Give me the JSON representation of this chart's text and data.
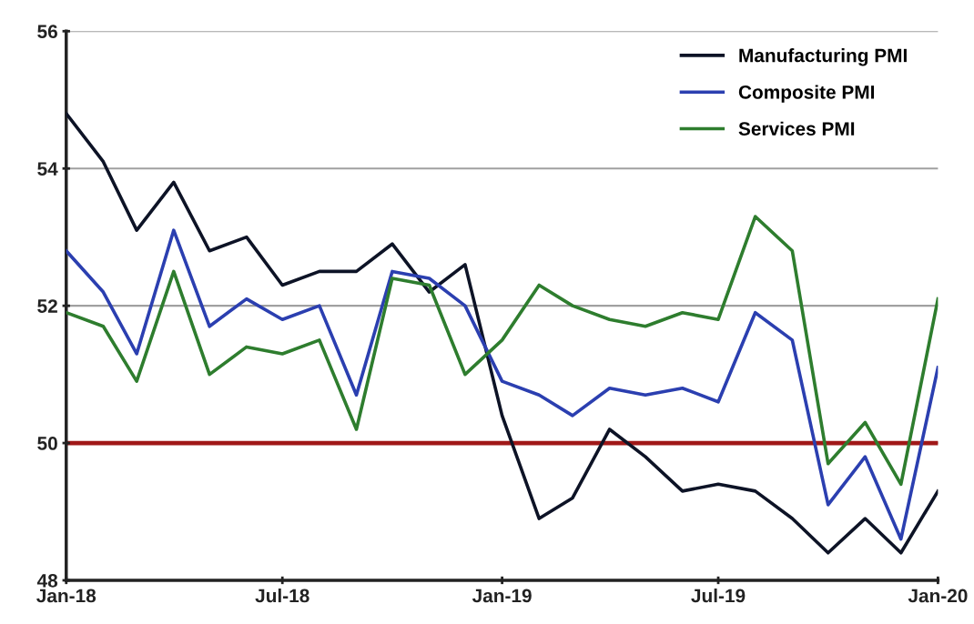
{
  "chart_data": {
    "type": "line",
    "x": [
      "2018-01",
      "2018-02",
      "2018-03",
      "2018-04",
      "2018-05",
      "2018-06",
      "2018-07",
      "2018-08",
      "2018-09",
      "2018-10",
      "2018-11",
      "2018-12",
      "2019-01",
      "2019-02",
      "2019-03",
      "2019-04",
      "2019-05",
      "2019-06",
      "2019-07",
      "2019-08",
      "2019-09",
      "2019-10",
      "2019-11",
      "2019-12",
      "2020-01"
    ],
    "series": [
      {
        "name": "Manufacturing PMI",
        "color": "#0d1326",
        "values": [
          54.8,
          54.1,
          53.1,
          53.8,
          52.8,
          53.0,
          52.3,
          52.5,
          52.5,
          52.9,
          52.2,
          52.6,
          50.4,
          48.9,
          49.2,
          50.2,
          49.8,
          49.3,
          49.4,
          49.3,
          48.9,
          48.4,
          48.9,
          48.4,
          49.3
        ]
      },
      {
        "name": "Composite PMI",
        "color": "#2b3fb0",
        "values": [
          52.8,
          52.2,
          51.3,
          53.1,
          51.7,
          52.1,
          51.8,
          52.0,
          50.7,
          52.5,
          52.4,
          52.0,
          50.9,
          50.7,
          50.4,
          50.8,
          50.7,
          50.8,
          50.6,
          51.9,
          51.5,
          49.1,
          49.8,
          48.6,
          51.1
        ]
      },
      {
        "name": "Services PMI",
        "color": "#2e7d2e",
        "values": [
          51.9,
          51.7,
          50.9,
          52.5,
          51.0,
          51.4,
          51.3,
          51.5,
          50.2,
          52.4,
          52.3,
          51.0,
          51.5,
          52.3,
          52.0,
          51.8,
          51.7,
          51.9,
          51.8,
          53.3,
          52.8,
          49.7,
          50.3,
          49.4,
          52.1
        ]
      }
    ],
    "xlim": [
      "2018-01",
      "2020-01"
    ],
    "xticks": [
      {
        "value": "2018-01",
        "label": "Jan-18"
      },
      {
        "value": "2018-07",
        "label": "Jul-18"
      },
      {
        "value": "2019-01",
        "label": "Jan-19"
      },
      {
        "value": "2019-07",
        "label": "Jul-19"
      },
      {
        "value": "2020-01",
        "label": "Jan-20"
      }
    ],
    "ylim": [
      48,
      56
    ],
    "yticks": [
      48,
      50,
      52,
      54,
      56
    ],
    "ref_lines": [
      {
        "axis": "y",
        "value": 50,
        "color": "#a01818"
      }
    ],
    "grid": "y",
    "legend": "top right",
    "marker": "none",
    "line_style": "solid"
  }
}
